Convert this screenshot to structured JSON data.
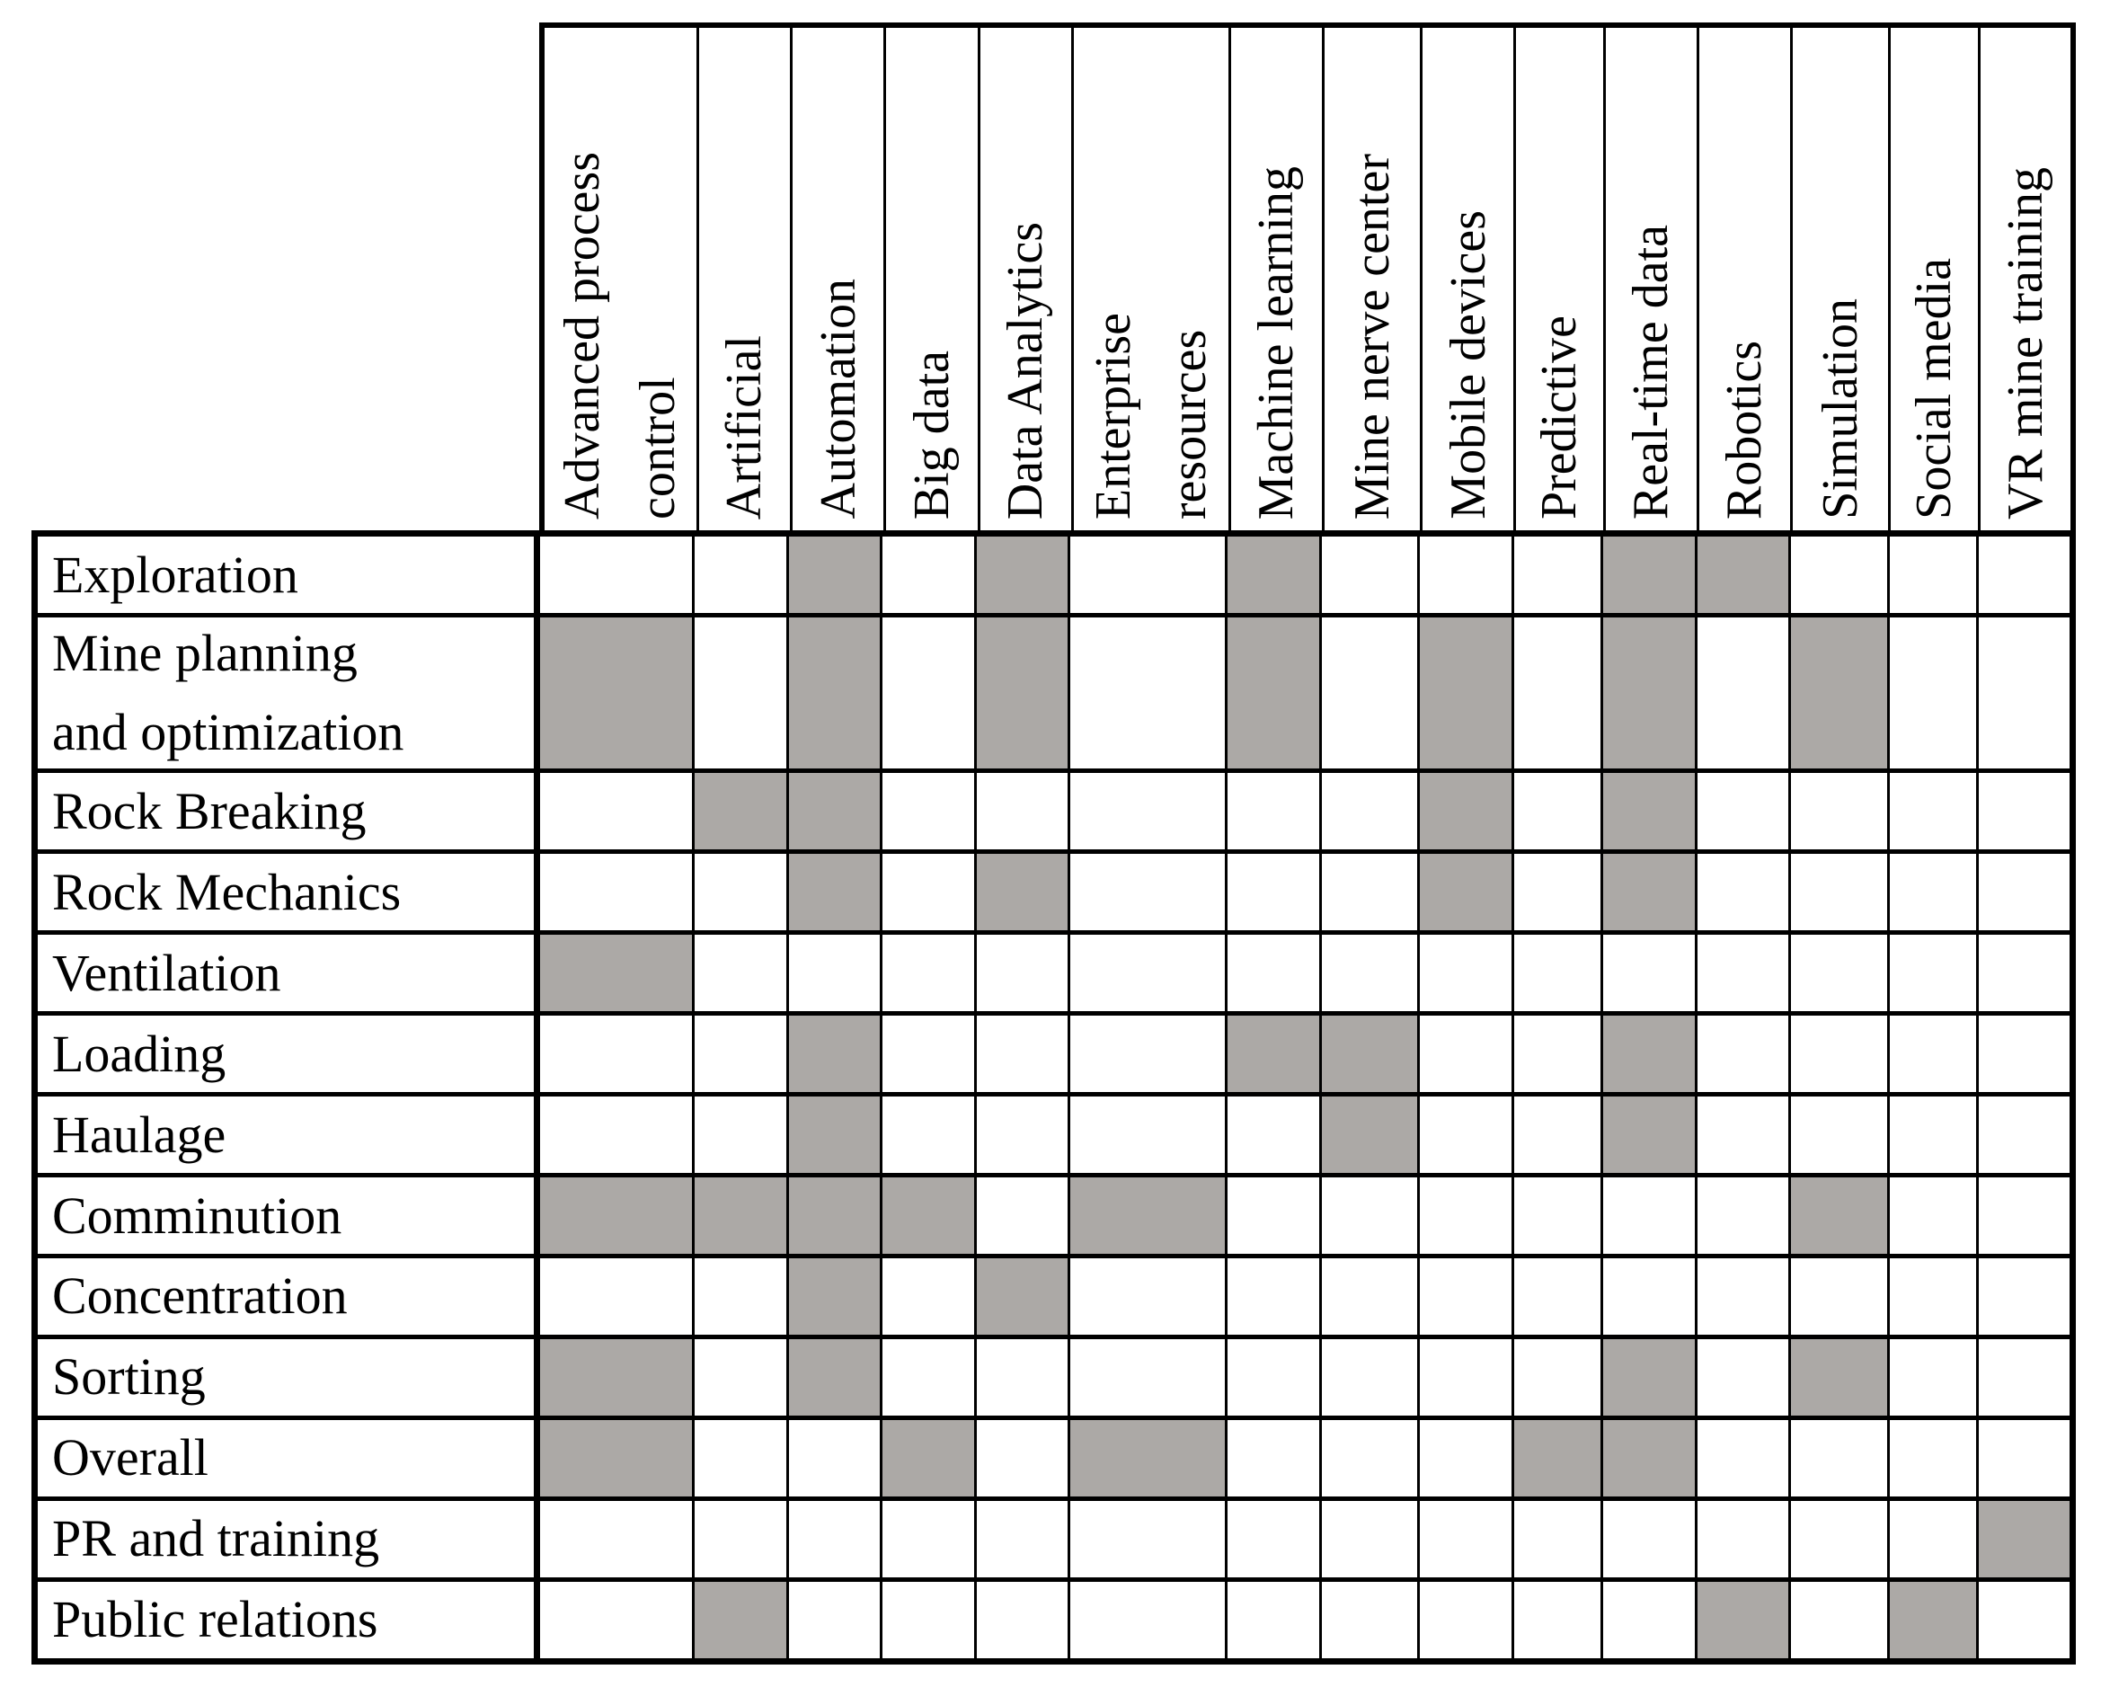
{
  "table": {
    "corner_label": "",
    "columns": [
      {
        "label": "Advanced process\ncontrol",
        "width": 175
      },
      {
        "label": "Artificial",
        "width": 105
      },
      {
        "label": "Automation",
        "width": 105
      },
      {
        "label": "Big data",
        "width": 105
      },
      {
        "label": "Data Analytics",
        "width": 105
      },
      {
        "label": "Enterprise\nresources",
        "width": 178
      },
      {
        "label": "Machine learning",
        "width": 105
      },
      {
        "label": "Mine nerve center",
        "width": 110
      },
      {
        "label": "Mobile devices",
        "width": 105
      },
      {
        "label": "Predictive",
        "width": 100
      },
      {
        "label": "Real-time data",
        "width": 105
      },
      {
        "label": "Robotics",
        "width": 105
      },
      {
        "label": "Simulation",
        "width": 110
      },
      {
        "label": "Social media",
        "width": 100
      },
      {
        "label": "VR mine training",
        "width": 104
      }
    ],
    "rows": [
      {
        "label": "Exploration",
        "height": 90,
        "cells": [
          0,
          0,
          1,
          0,
          1,
          0,
          1,
          0,
          0,
          0,
          1,
          1,
          0,
          0,
          0
        ]
      },
      {
        "label": "Mine planning\nand optimization",
        "height": 178,
        "cells": [
          1,
          0,
          1,
          0,
          1,
          0,
          1,
          0,
          1,
          0,
          1,
          0,
          1,
          0,
          0
        ]
      },
      {
        "label": "Rock Breaking",
        "height": 90,
        "cells": [
          0,
          1,
          1,
          0,
          0,
          0,
          0,
          0,
          1,
          0,
          1,
          0,
          0,
          0,
          0
        ]
      },
      {
        "label": "Rock Mechanics",
        "height": 90,
        "cells": [
          0,
          0,
          1,
          0,
          1,
          0,
          0,
          0,
          1,
          0,
          1,
          0,
          0,
          0,
          0
        ]
      },
      {
        "label": "Ventilation",
        "height": 90,
        "cells": [
          1,
          0,
          0,
          0,
          0,
          0,
          0,
          0,
          0,
          0,
          0,
          0,
          0,
          0,
          0
        ]
      },
      {
        "label": "Loading",
        "height": 90,
        "cells": [
          0,
          0,
          1,
          0,
          0,
          0,
          1,
          1,
          0,
          0,
          1,
          0,
          0,
          0,
          0
        ]
      },
      {
        "label": "Haulage",
        "height": 90,
        "cells": [
          0,
          0,
          1,
          0,
          0,
          0,
          0,
          1,
          0,
          0,
          1,
          0,
          0,
          0,
          0
        ]
      },
      {
        "label": "Comminution",
        "height": 90,
        "cells": [
          1,
          1,
          1,
          1,
          0,
          1,
          0,
          0,
          0,
          0,
          0,
          0,
          1,
          0,
          0
        ]
      },
      {
        "label": "Concentration",
        "height": 90,
        "cells": [
          0,
          0,
          1,
          0,
          1,
          0,
          0,
          0,
          0,
          0,
          0,
          0,
          0,
          0,
          0
        ]
      },
      {
        "label": "Sorting",
        "height": 90,
        "cells": [
          1,
          0,
          1,
          0,
          0,
          0,
          0,
          0,
          0,
          0,
          1,
          0,
          1,
          0,
          0
        ]
      },
      {
        "label": "Overall",
        "height": 90,
        "cells": [
          1,
          0,
          0,
          1,
          0,
          1,
          0,
          0,
          0,
          1,
          1,
          0,
          0,
          0,
          0
        ]
      },
      {
        "label": "PR and training",
        "height": 90,
        "cells": [
          0,
          0,
          0,
          0,
          0,
          0,
          0,
          0,
          0,
          0,
          0,
          0,
          0,
          0,
          1
        ]
      },
      {
        "label": "Public relations",
        "height": 90,
        "cells": [
          0,
          1,
          0,
          0,
          0,
          0,
          0,
          0,
          0,
          0,
          0,
          1,
          0,
          1,
          0
        ]
      }
    ],
    "colors": {
      "shaded": "#ACA9A6",
      "grid": "#000000",
      "background": "#FFFFFF"
    }
  }
}
